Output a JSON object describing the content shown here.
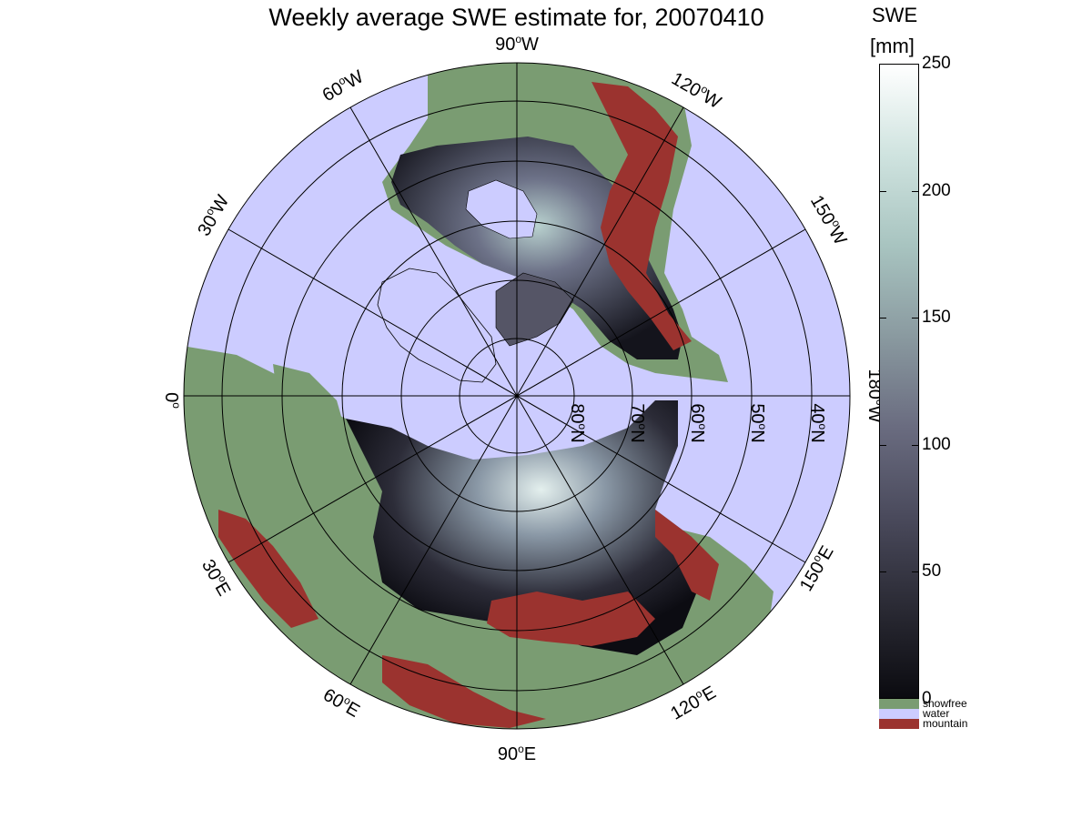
{
  "title": "Weekly average SWE estimate for, 20070410",
  "colors": {
    "water": "#ccccff",
    "snowfree": "#7a9c72",
    "mountain": "#9b332f",
    "snow_low": "#0b0b10",
    "snow_mid": "#5a5a70",
    "snow_high": "#d8e8e6",
    "coast": "#000000"
  },
  "map": {
    "projection": "north-polar-stereographic",
    "longitude_labels": [
      {
        "deg": "90",
        "suffix": "W"
      },
      {
        "deg": "120",
        "suffix": "W"
      },
      {
        "deg": "150",
        "suffix": "W"
      },
      {
        "deg": "180",
        "suffix": "W"
      },
      {
        "deg": "150",
        "suffix": "E"
      },
      {
        "deg": "120",
        "suffix": "E"
      },
      {
        "deg": "90",
        "suffix": "E"
      },
      {
        "deg": "60",
        "suffix": "E"
      },
      {
        "deg": "30",
        "suffix": "E"
      },
      {
        "deg": "0",
        "suffix": ""
      },
      {
        "deg": "30",
        "suffix": "W"
      },
      {
        "deg": "60",
        "suffix": "W"
      }
    ],
    "latitude_labels": [
      {
        "deg": "40",
        "suffix": "N"
      },
      {
        "deg": "50",
        "suffix": "N"
      },
      {
        "deg": "60",
        "suffix": "N"
      },
      {
        "deg": "70",
        "suffix": "N"
      },
      {
        "deg": "80",
        "suffix": "N"
      }
    ]
  },
  "colorbar": {
    "title_line1": "SWE",
    "title_line2": "[mm]",
    "min": 0,
    "max": 250,
    "ticks": [
      "0",
      "50",
      "100",
      "150",
      "200",
      "250"
    ],
    "gradient": [
      "#0b0b10",
      "#2a2a34",
      "#4a4a5c",
      "#6a6c80",
      "#8a9aa0",
      "#a8c4c0",
      "#cfe3df",
      "#ffffff"
    ]
  },
  "legend": [
    {
      "label": "snowfree",
      "color": "#7a9c72"
    },
    {
      "label": "water",
      "color": "#ccccff"
    },
    {
      "label": "mountain",
      "color": "#9b332f"
    }
  ]
}
